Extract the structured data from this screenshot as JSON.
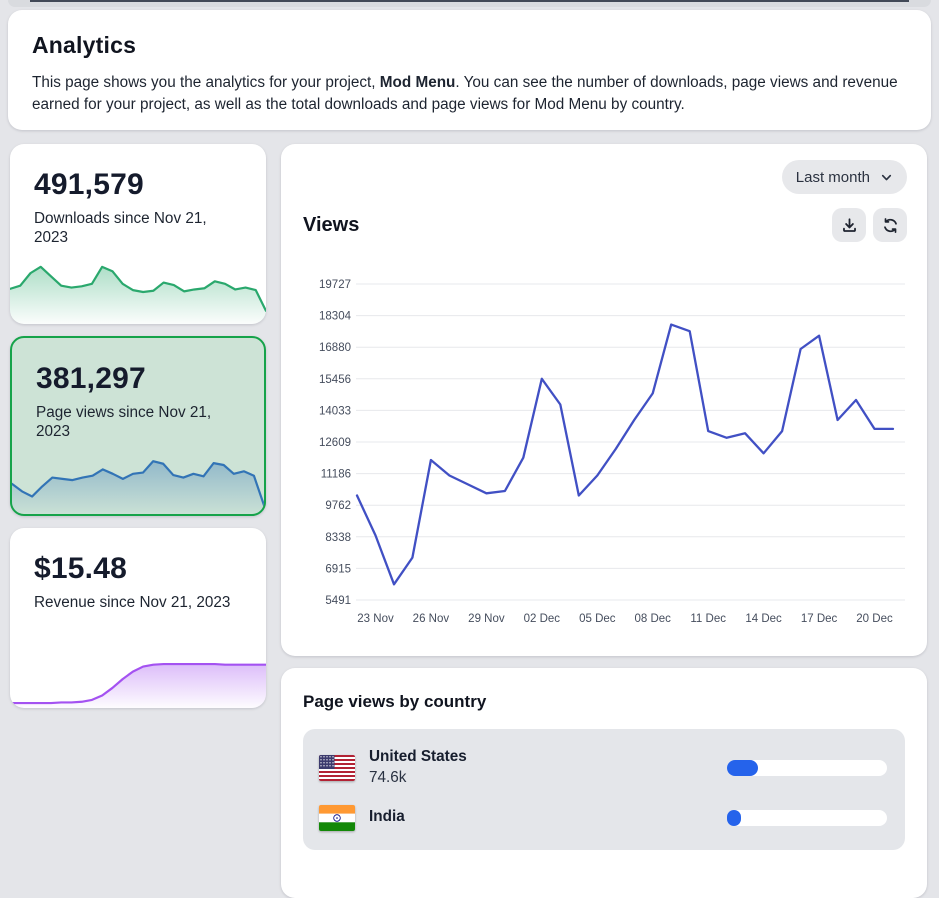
{
  "header": {
    "title": "Analytics",
    "description": {
      "before": "This page shows you the analytics for your project, ",
      "project": "Mod Menu",
      "after": ". You can see the number of downloads, page views and revenue earned for your project, as well as the total downloads and page views for Mod Menu by country."
    }
  },
  "stat_cards": [
    {
      "value": "491,579",
      "label": "Downloads since Nov 21, 2023",
      "accent": "#2aa86d",
      "selected": false
    },
    {
      "value": "381,297",
      "label": "Page views since Nov 21, 2023",
      "accent": "#3274b6",
      "selected": true
    },
    {
      "value": "$15.48",
      "label": "Revenue since Nov 21, 2023",
      "accent": "#a452f1",
      "selected": false
    }
  ],
  "views_panel": {
    "title": "Views",
    "range_selector": "Last month",
    "icon_buttons": [
      "download-icon",
      "refresh-icon"
    ]
  },
  "chart_data": [
    {
      "type": "line",
      "name": "views_by_day",
      "title": "Views",
      "x": [
        "22 Nov",
        "23 Nov",
        "24 Nov",
        "25 Nov",
        "26 Nov",
        "27 Nov",
        "28 Nov",
        "29 Nov",
        "30 Nov",
        "01 Dec",
        "02 Dec",
        "03 Dec",
        "04 Dec",
        "05 Dec",
        "06 Dec",
        "07 Dec",
        "08 Dec",
        "09 Dec",
        "10 Dec",
        "11 Dec",
        "12 Dec",
        "13 Dec",
        "14 Dec",
        "15 Dec",
        "16 Dec",
        "17 Dec",
        "18 Dec",
        "19 Dec",
        "20 Dec",
        "21 Dec"
      ],
      "values": [
        10200,
        8400,
        6200,
        7400,
        11800,
        11100,
        10700,
        10300,
        10400,
        11900,
        15456,
        14300,
        10200,
        11100,
        12300,
        13600,
        14800,
        17900,
        17600,
        13100,
        12800,
        13000,
        12100,
        13100,
        16800,
        17400,
        13600,
        14500,
        13200,
        13200
      ],
      "y_ticks": [
        5491,
        6915,
        8338,
        9762,
        11186,
        12609,
        14033,
        15456,
        16880,
        18304,
        19727
      ],
      "x_tick_labels": [
        "23 Nov",
        "26 Nov",
        "29 Nov",
        "02 Dec",
        "05 Dec",
        "08 Dec",
        "11 Dec",
        "14 Dec",
        "17 Dec",
        "20 Dec"
      ],
      "x_tick_indices": [
        1,
        4,
        7,
        10,
        13,
        16,
        19,
        22,
        25,
        28
      ],
      "ylim": [
        5491,
        19727
      ],
      "grid": true,
      "legend": false,
      "line_color": "#4150c4",
      "grid_color": "#e7e8ec",
      "tick_color": "#454d5d"
    },
    {
      "type": "area",
      "name": "downloads_sparkline",
      "color": "#2aa86d",
      "values": [
        50,
        55,
        75,
        85,
        70,
        55,
        52,
        54,
        58,
        85,
        78,
        58,
        48,
        45,
        47,
        60,
        56,
        46,
        49,
        51,
        62,
        58,
        49,
        52,
        48,
        15
      ]
    },
    {
      "type": "area",
      "name": "page_views_sparkline",
      "color": "#3274b6",
      "values": [
        42,
        30,
        22,
        38,
        52,
        50,
        48,
        52,
        55,
        65,
        58,
        50,
        58,
        60,
        78,
        74,
        56,
        52,
        58,
        54,
        75,
        72,
        58,
        62,
        55,
        8
      ]
    },
    {
      "type": "area",
      "name": "revenue_sparkline",
      "color": "#a452f1",
      "values": [
        2,
        2,
        2,
        2,
        2,
        3,
        3,
        4,
        7,
        14,
        26,
        40,
        52,
        60,
        63,
        64,
        64,
        64,
        64,
        64,
        64,
        63,
        63,
        63,
        63,
        63
      ]
    }
  ],
  "country_panel": {
    "title": "Page views by country",
    "bar_color": "#2563eb",
    "rows": [
      {
        "country": "United States",
        "value": "74.6k",
        "bar_percent": 19.5,
        "flag": "us"
      },
      {
        "country": "India",
        "value": "",
        "bar_percent": 9,
        "flag": "in"
      }
    ]
  }
}
